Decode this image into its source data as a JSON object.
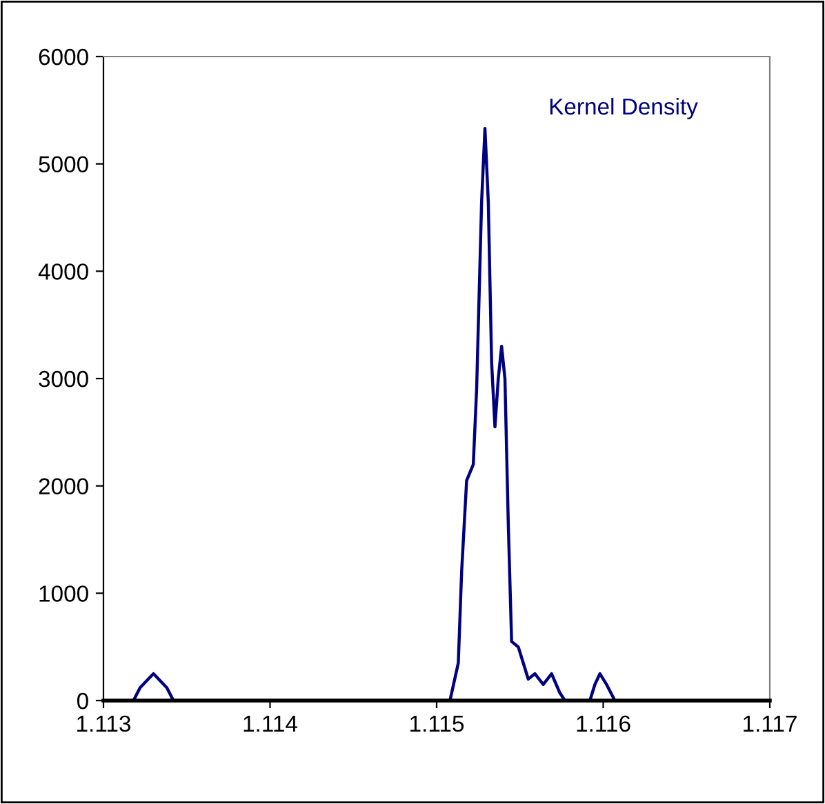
{
  "chart_data": {
    "type": "line",
    "annotations": [
      "Kernel Density"
    ],
    "x": [
      1.11318,
      1.11322,
      1.1133,
      1.11338,
      1.11342,
      1.11508,
      1.11513,
      1.11515,
      1.11518,
      1.11522,
      1.11524,
      1.11527,
      1.11529,
      1.11531,
      1.11533,
      1.11535,
      1.11537,
      1.11539,
      1.11541,
      1.11543,
      1.11545,
      1.11549,
      1.11552,
      1.11555,
      1.11559,
      1.11564,
      1.11569,
      1.11574,
      1.11577,
      1.11592,
      1.11595,
      1.11598,
      1.11602,
      1.11607
    ],
    "series": [
      {
        "color": "#000080",
        "values": [
          0,
          120,
          250,
          120,
          0,
          0,
          350,
          1200,
          2050,
          2200,
          2900,
          4650,
          5330,
          4650,
          3150,
          2550,
          3000,
          3300,
          3000,
          1650,
          550,
          500,
          350,
          200,
          250,
          150,
          250,
          70,
          0,
          0,
          150,
          250,
          150,
          0
        ]
      }
    ],
    "xlim": [
      1.113,
      1.117
    ],
    "xticks": [
      {
        "value": 1.113,
        "label": "1.113"
      },
      {
        "value": 1.114,
        "label": "1.114"
      },
      {
        "value": 1.115,
        "label": "1.115"
      },
      {
        "value": 1.116,
        "label": "1.116"
      },
      {
        "value": 1.117,
        "label": "1.117"
      }
    ],
    "ylim": [
      0,
      6000
    ],
    "yticks": [
      0,
      1000,
      2000,
      3000,
      4000,
      5000,
      6000
    ],
    "grid": false,
    "legend": false,
    "marker": "none",
    "line_style": "solid"
  }
}
